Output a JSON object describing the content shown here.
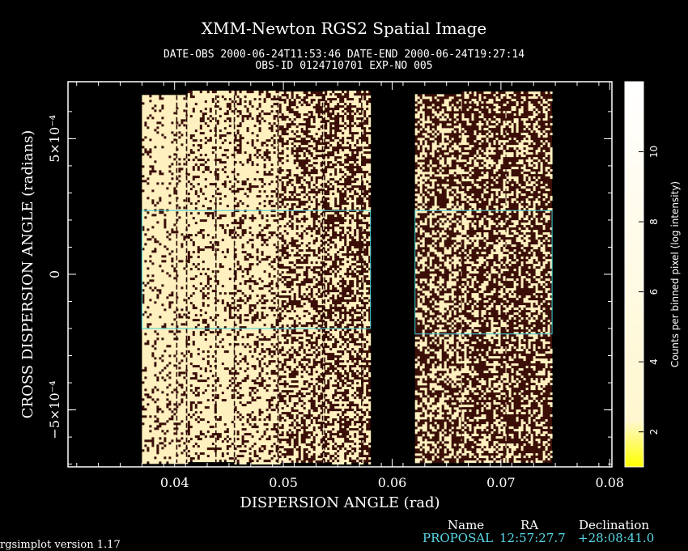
{
  "header": {
    "title": "XMM-Newton  RGS2 Spatial Image",
    "obs_line": "DATE-OBS 2000-06-24T11:53:46   DATE-END 2000-06-24T19:27:14",
    "id_line": "OBS-ID 0124710701 EXP-NO 005"
  },
  "chart_data": {
    "type": "heatmap",
    "title": "XMM-Newton  RGS2 Spatial Image",
    "xlabel": "DISPERSION ANGLE (rad)",
    "ylabel": "CROSS DISPERSION ANGLE (radians)",
    "xlim": [
      0.0302,
      0.0802
    ],
    "ylim": [
      -0.00071,
      0.00071
    ],
    "x_ticks": [
      0.04,
      0.05,
      0.06,
      0.07,
      0.08
    ],
    "x_tick_labels": [
      "0.04",
      "0.05",
      "0.06",
      "0.07",
      "0.08"
    ],
    "y_ticks": [
      -0.0005,
      0,
      0.0005
    ],
    "y_tick_labels": [
      "−5×10⁻⁴",
      "0",
      "5×10⁻⁴"
    ],
    "colorbar": {
      "label": "Counts per binned pixel (log intensity)",
      "range": [
        1,
        12
      ],
      "ticks": [
        2,
        4,
        6,
        8,
        10
      ],
      "colors": [
        "#ffff00",
        "#fff7cf",
        "#ffffff"
      ]
    },
    "ccd_strips": [
      {
        "x0": 0.037,
        "x1": 0.0412,
        "y0": -0.000695,
        "y1": 0.000661,
        "density": 0.85
      },
      {
        "x0": 0.0412,
        "x1": 0.0455,
        "y0": -0.00069,
        "y1": 0.000677,
        "density": 0.8
      },
      {
        "x0": 0.0455,
        "x1": 0.0496,
        "y0": -0.000695,
        "y1": 0.000677,
        "density": 0.72
      },
      {
        "x0": 0.0496,
        "x1": 0.0538,
        "y0": -0.000695,
        "y1": 0.000674,
        "density": 0.55
      },
      {
        "x0": 0.0538,
        "x1": 0.058,
        "y0": -0.000695,
        "y1": 0.000677,
        "density": 0.48
      },
      {
        "x0": 0.0621,
        "x1": 0.0664,
        "y0": -0.000695,
        "y1": 0.000664,
        "density": 0.42
      },
      {
        "x0": 0.0664,
        "x1": 0.0705,
        "y0": -0.000695,
        "y1": 0.000674,
        "density": 0.4
      },
      {
        "x0": 0.0705,
        "x1": 0.0747,
        "y0": -0.000695,
        "y1": 0.000674,
        "density": 0.38
      }
    ],
    "dark_columns": [
      0.0402,
      0.0411,
      0.0438,
      0.0455,
      0.0495,
      0.0536,
      0.0538,
      0.0572
    ],
    "extraction_regions": [
      {
        "x0": 0.037,
        "x1": 0.058,
        "y_top": 0.000235,
        "y_bottom": -0.0002
      },
      {
        "x0": 0.0621,
        "x1": 0.0747,
        "y_top": 0.000235,
        "y_bottom": -0.00022
      }
    ],
    "region_color": "#3fd0d8"
  },
  "footer": {
    "name_label": "Name",
    "ra_label": "RA",
    "dec_label": "Declination",
    "source_name": "PROPOSAL",
    "ra_value": "12:57:27.7",
    "dec_value": "+28:08:41.0"
  },
  "version": "rgsimplot version 1.17"
}
